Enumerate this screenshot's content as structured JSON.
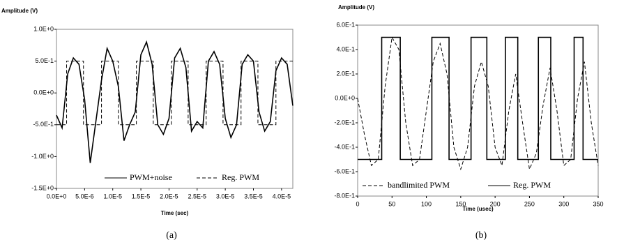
{
  "chart_data": [
    {
      "type": "line",
      "y_label": "Amplitude (V)",
      "x_label": "Time (sec)",
      "caption": "(a)",
      "legend": "lower center",
      "xlim": [
        0,
        4.2e-05
      ],
      "ylim": [
        -1.5,
        1.0
      ],
      "xticks": [
        {
          "value": 0,
          "label": "0.0E+0"
        },
        {
          "value": 5e-06,
          "label": "5.0E-6"
        },
        {
          "value": 1e-05,
          "label": "1.0E-5"
        },
        {
          "value": 1.5e-05,
          "label": "1.5E-5"
        },
        {
          "value": 2e-05,
          "label": "2.0E-5"
        },
        {
          "value": 2.5e-05,
          "label": "2.5E-5"
        },
        {
          "value": 3e-05,
          "label": "3.0E-5"
        },
        {
          "value": 3.5e-05,
          "label": "3.5E-5"
        },
        {
          "value": 4e-05,
          "label": "4.0E-5"
        }
      ],
      "yticks": [
        {
          "value": 1,
          "label": "1.0E+0"
        },
        {
          "value": 0.5,
          "label": "5.0E-1"
        },
        {
          "value": 0,
          "label": "0.0E+0"
        },
        {
          "value": -0.5,
          "label": "-5.0E-1"
        },
        {
          "value": -1,
          "label": "-1.0E+0"
        },
        {
          "value": -1.5,
          "label": "-1.5E+0"
        }
      ],
      "series": [
        {
          "name": "PWM+noise",
          "color": "#000000",
          "linestyle": "solid",
          "x": [
            0,
            1e-06,
            2e-06,
            3e-06,
            4e-06,
            5e-06,
            6e-06,
            7e-06,
            8e-06,
            9e-06,
            1e-05,
            1.1e-05,
            1.2e-05,
            1.3e-05,
            1.4e-05,
            1.5e-05,
            1.6e-05,
            1.7e-05,
            1.8e-05,
            1.9e-05,
            2e-05,
            2.1e-05,
            2.2e-05,
            2.3e-05,
            2.4e-05,
            2.5e-05,
            2.6e-05,
            2.7e-05,
            2.8e-05,
            2.9e-05,
            3e-05,
            3.1e-05,
            3.2e-05,
            3.3e-05,
            3.4e-05,
            3.5e-05,
            3.6e-05,
            3.7e-05,
            3.8e-05,
            3.9e-05,
            4e-05,
            4.1e-05,
            4.2e-05
          ],
          "values": [
            -0.35,
            -0.55,
            0.3,
            0.55,
            0.45,
            -0.1,
            -1.1,
            -0.45,
            0.2,
            0.7,
            0.5,
            0.1,
            -0.75,
            -0.5,
            -0.3,
            0.6,
            0.8,
            0.45,
            -0.5,
            -0.65,
            -0.4,
            0.55,
            0.7,
            0.4,
            -0.6,
            -0.45,
            -0.55,
            0.5,
            0.65,
            0.45,
            -0.4,
            -0.7,
            -0.5,
            0.45,
            0.6,
            0.5,
            -0.3,
            -0.6,
            -0.45,
            0.35,
            0.55,
            0.45,
            -0.2
          ]
        },
        {
          "name": "Reg. PWM",
          "color": "#000000",
          "linestyle": "dashed",
          "x": [
            0,
            1.8e-06,
            1.8e-06,
            4.8e-06,
            4.8e-06,
            8e-06,
            8e-06,
            1.1e-05,
            1.1e-05,
            1.42e-05,
            1.42e-05,
            1.72e-05,
            1.72e-05,
            2.04e-05,
            2.04e-05,
            2.34e-05,
            2.34e-05,
            2.66e-05,
            2.66e-05,
            2.96e-05,
            2.96e-05,
            3.28e-05,
            3.28e-05,
            3.58e-05,
            3.58e-05,
            3.9e-05,
            3.9e-05,
            4.2e-05
          ],
          "values": [
            -0.5,
            -0.5,
            0.5,
            0.5,
            -0.5,
            -0.5,
            0.5,
            0.5,
            -0.5,
            -0.5,
            0.5,
            0.5,
            -0.5,
            -0.5,
            0.5,
            0.5,
            -0.5,
            -0.5,
            0.5,
            0.5,
            -0.5,
            -0.5,
            0.5,
            0.5,
            -0.5,
            -0.5,
            0.5,
            0.5
          ]
        }
      ]
    },
    {
      "type": "line",
      "y_label": "Amplitude (V)",
      "x_label": "Time (usec)",
      "caption": "(b)",
      "legend": "lower center",
      "xlim": [
        0,
        350
      ],
      "ylim": [
        -0.8,
        0.6
      ],
      "xticks": [
        0,
        50,
        100,
        150,
        200,
        250,
        300,
        350
      ],
      "yticks": [
        {
          "value": 0.6,
          "label": "6.0E-1"
        },
        {
          "value": 0.4,
          "label": "4.0E-1"
        },
        {
          "value": 0.2,
          "label": "2.0E-1"
        },
        {
          "value": 0,
          "label": "0.0E+0"
        },
        {
          "value": -0.2,
          "label": "-2.0E-1"
        },
        {
          "value": -0.4,
          "label": "-4.0E-1"
        },
        {
          "value": -0.6,
          "label": "-6.0E-1"
        },
        {
          "value": -0.8,
          "label": "-8.0E-1"
        }
      ],
      "series": [
        {
          "name": "bandlimited PWM",
          "color": "#000000",
          "linestyle": "dashed",
          "x": [
            0,
            10,
            20,
            30,
            40,
            50,
            60,
            70,
            80,
            90,
            100,
            110,
            120,
            130,
            140,
            150,
            160,
            170,
            180,
            190,
            200,
            210,
            220,
            230,
            240,
            250,
            260,
            270,
            280,
            290,
            300,
            310,
            320,
            330,
            340,
            350
          ],
          "values": [
            0,
            -0.3,
            -0.55,
            -0.5,
            0.1,
            0.5,
            0.4,
            -0.2,
            -0.55,
            -0.5,
            -0.1,
            0.3,
            0.45,
            0.2,
            -0.4,
            -0.58,
            -0.4,
            0.1,
            0.3,
            0.1,
            -0.4,
            -0.55,
            -0.1,
            0.2,
            -0.2,
            -0.58,
            -0.45,
            -0.05,
            0.25,
            -0.1,
            -0.55,
            -0.5,
            0,
            0.3,
            -0.2,
            -0.55
          ]
        },
        {
          "name": "Reg. PWM",
          "color": "#000000",
          "linestyle": "solid",
          "x": [
            0,
            35,
            35,
            62,
            62,
            108,
            108,
            133,
            133,
            165,
            165,
            188,
            188,
            215,
            215,
            233,
            233,
            263,
            263,
            281,
            281,
            315,
            315,
            328,
            328,
            350
          ],
          "values": [
            -0.5,
            -0.5,
            0.5,
            0.5,
            -0.5,
            -0.5,
            0.5,
            0.5,
            -0.5,
            -0.5,
            0.5,
            0.5,
            -0.5,
            -0.5,
            0.5,
            0.5,
            -0.5,
            -0.5,
            0.5,
            0.5,
            -0.5,
            -0.5,
            0.5,
            0.5,
            -0.5,
            -0.5
          ]
        }
      ]
    }
  ]
}
